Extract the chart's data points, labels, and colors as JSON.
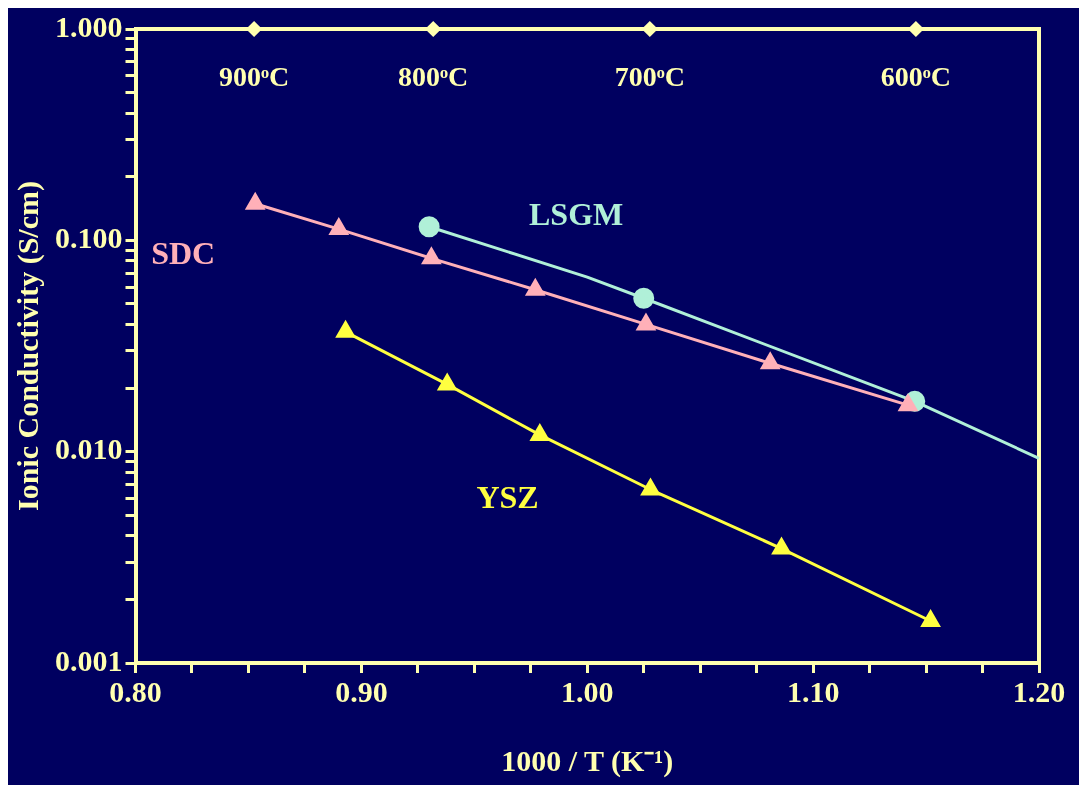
{
  "chart_data": {
    "type": "line",
    "xlabel": "1000 / T (K⁻¹)",
    "ylabel": "Ionic Conductivity (S/cm)",
    "log": "y",
    "grid": false,
    "legend": false,
    "xlim": [
      0.8,
      1.2
    ],
    "xticks": [
      {
        "value": 0.8,
        "label": "0.80"
      },
      {
        "value": 0.825,
        "label": null
      },
      {
        "value": 0.85,
        "label": null
      },
      {
        "value": 0.875,
        "label": null
      },
      {
        "value": 0.9,
        "label": "0.90"
      },
      {
        "value": 0.925,
        "label": null
      },
      {
        "value": 0.95,
        "label": null
      },
      {
        "value": 0.975,
        "label": null
      },
      {
        "value": 1.0,
        "label": "1.00"
      },
      {
        "value": 1.025,
        "label": null
      },
      {
        "value": 1.05,
        "label": null
      },
      {
        "value": 1.075,
        "label": null
      },
      {
        "value": 1.1,
        "label": "1.10"
      },
      {
        "value": 1.125,
        "label": null
      },
      {
        "value": 1.15,
        "label": null
      },
      {
        "value": 1.175,
        "label": null
      },
      {
        "value": 1.2,
        "label": "1.20"
      }
    ],
    "annotations": [
      {
        "text": "900ᵒC",
        "x": 0.8525,
        "y": 1
      },
      {
        "text": "800ᵒC",
        "x": 0.9318,
        "y": 1
      },
      {
        "text": "700ᵒC",
        "x": 1.0277,
        "y": 1
      },
      {
        "text": "600ᵒC",
        "x": 1.1455,
        "y": 1
      }
    ],
    "ylim": [
      0.001,
      1
    ],
    "yticks": [
      {
        "value": 0.001,
        "label": "0.001"
      },
      {
        "value": 0.002,
        "label": null
      },
      {
        "value": 0.003,
        "label": null
      },
      {
        "value": 0.004,
        "label": null
      },
      {
        "value": 0.005,
        "label": null
      },
      {
        "value": 0.006,
        "label": null
      },
      {
        "value": 0.007,
        "label": null
      },
      {
        "value": 0.008,
        "label": null
      },
      {
        "value": 0.009,
        "label": null
      },
      {
        "value": 0.01,
        "label": "0.010"
      },
      {
        "value": 0.02,
        "label": null
      },
      {
        "value": 0.03,
        "label": null
      },
      {
        "value": 0.04,
        "label": null
      },
      {
        "value": 0.05,
        "label": null
      },
      {
        "value": 0.06,
        "label": null
      },
      {
        "value": 0.07,
        "label": null
      },
      {
        "value": 0.08,
        "label": null
      },
      {
        "value": 0.09,
        "label": null
      },
      {
        "value": 0.1,
        "label": "0.100"
      },
      {
        "value": 0.2,
        "label": null
      },
      {
        "value": 0.3,
        "label": null
      },
      {
        "value": 0.4,
        "label": null
      },
      {
        "value": 0.5,
        "label": null
      },
      {
        "value": 0.6,
        "label": null
      },
      {
        "value": 0.7,
        "label": null
      },
      {
        "value": 0.8,
        "label": null
      },
      {
        "value": 0.9,
        "label": null
      },
      {
        "value": 1,
        "label": "1.000"
      }
    ],
    "series": [
      {
        "name": "LSGM",
        "type": "scatter",
        "marker": "circle",
        "color": "#b0f0d8",
        "x": [
          0.93,
          1.025,
          1.145
        ],
        "values": [
          0.116,
          0.0532,
          0.0173
        ]
      },
      {
        "type": "line",
        "marker": "none",
        "color": "#b0f0d8",
        "x": [
          0.93,
          1.0,
          1.025,
          1.145,
          1.2
        ],
        "values": [
          0.116,
          0.067,
          0.0532,
          0.0173,
          0.0093
        ]
      },
      {
        "name": "SDC",
        "marker": "triangle",
        "color": "#ffb0b8",
        "x": [
          0.853,
          0.89,
          0.931,
          0.977,
          1.026,
          1.081,
          1.142
        ],
        "values": [
          0.149,
          0.113,
          0.0822,
          0.0584,
          0.04,
          0.0262,
          0.0166
        ]
      },
      {
        "type": "scatter",
        "marker": "diamond",
        "color": "#ffffb0",
        "x": [
          0.8525,
          0.9318,
          1.0277,
          1.1455
        ],
        "values": [
          1,
          1,
          1,
          1
        ]
      },
      {
        "name": "YSZ",
        "marker": "triangle",
        "color": "#ffff40",
        "x": [
          0.893,
          0.938,
          0.979,
          1.028,
          1.086,
          1.152
        ],
        "values": [
          0.0369,
          0.0208,
          0.012,
          0.00662,
          0.00348,
          0.00158
        ]
      }
    ]
  }
}
